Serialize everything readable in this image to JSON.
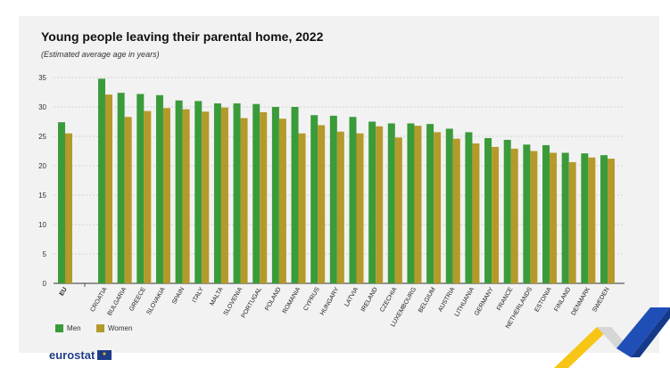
{
  "header": {
    "title": "Young people leaving their parental home, 2022",
    "subtitle": "(Estimated average age in years)"
  },
  "legend": {
    "men": "Men",
    "women": "Women"
  },
  "footer": {
    "logo_text": "eurostat"
  },
  "colors": {
    "men": "#3a9b3a",
    "women": "#b49a2a",
    "grid": "#c9c9c9",
    "axis": "#333333"
  },
  "chart_data": {
    "type": "bar",
    "title": "Young people leaving their parental home, 2022",
    "subtitle": "(Estimated average age in years)",
    "xlabel": "",
    "ylabel": "",
    "ylim": [
      0,
      35
    ],
    "yticks": [
      0,
      5,
      10,
      15,
      20,
      25,
      30,
      35
    ],
    "grid": true,
    "legend_position": "bottom-left",
    "categories": [
      "EU",
      "CROATIA",
      "BULGARIA",
      "GREECE",
      "SLOVAKIA",
      "SPAIN",
      "ITALY",
      "MALTA",
      "SLOVENIA",
      "PORTUGAL",
      "POLAND",
      "ROMANIA",
      "CYPRUS",
      "HUNGARY",
      "LATVIA",
      "IRELAND",
      "CZECHIA",
      "LUXEMBOURG",
      "BELGIUM",
      "AUSTRIA",
      "LITHUANIA",
      "GERMANY",
      "FRANCE",
      "NETHERLANDS",
      "ESTONIA",
      "FINLAND",
      "DENMARK",
      "SWEDEN"
    ],
    "series": [
      {
        "name": "Men",
        "values": [
          27.4,
          34.8,
          32.4,
          32.2,
          32.0,
          31.1,
          31.0,
          30.6,
          30.6,
          30.5,
          30.0,
          30.0,
          28.6,
          28.5,
          28.3,
          27.5,
          27.2,
          27.2,
          27.1,
          26.3,
          25.7,
          24.7,
          24.4,
          23.6,
          23.5,
          22.2,
          22.1,
          21.8
        ]
      },
      {
        "name": "Women",
        "values": [
          25.5,
          32.1,
          28.3,
          29.3,
          29.8,
          29.6,
          29.2,
          29.9,
          28.1,
          29.1,
          28.0,
          25.5,
          26.9,
          25.8,
          25.5,
          26.7,
          24.8,
          26.8,
          25.7,
          24.6,
          23.8,
          23.2,
          22.9,
          22.5,
          22.2,
          20.6,
          21.4,
          21.2
        ]
      }
    ]
  }
}
